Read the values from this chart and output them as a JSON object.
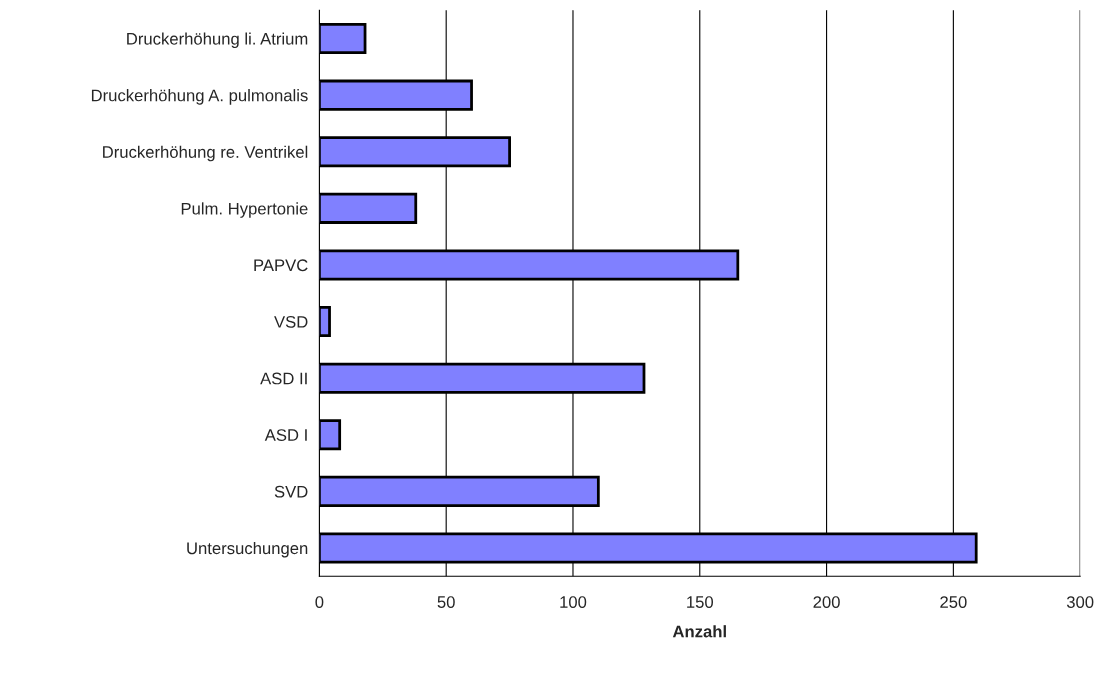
{
  "chart_data": {
    "type": "bar",
    "orientation": "horizontal",
    "xlabel": "Anzahl",
    "categories": [
      "Druckerhöhung li. Atrium",
      "Druckerhöhung A. pulmonalis",
      "Druckerhöhung re. Ventrikel",
      "Pulm. Hypertonie",
      "PAPVC",
      "VSD",
      "ASD II",
      "ASD I",
      "SVD",
      "Untersuchungen"
    ],
    "values": [
      18,
      60,
      75,
      38,
      165,
      4,
      128,
      8,
      110,
      259
    ],
    "color": "#8080ff",
    "xlim": [
      0,
      300
    ],
    "xticks": [
      0,
      50,
      100,
      150,
      200,
      250,
      300
    ],
    "grid": "x"
  }
}
